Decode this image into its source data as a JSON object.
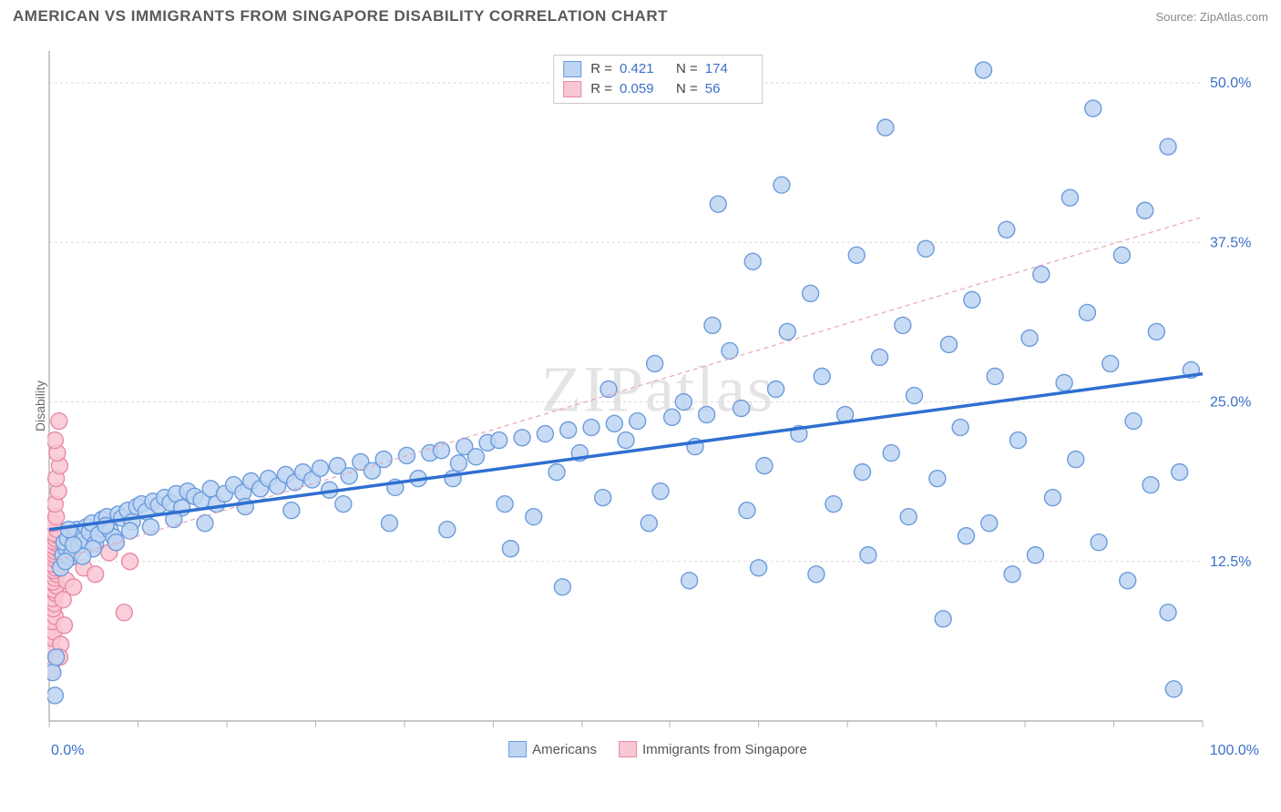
{
  "header": {
    "title": "AMERICAN VS IMMIGRANTS FROM SINGAPORE DISABILITY CORRELATION CHART",
    "source_prefix": "Source: ",
    "source_name": "ZipAtlas.com"
  },
  "watermark": "ZIPatlas",
  "chart": {
    "type": "scatter",
    "y_axis_label": "Disability",
    "background_color": "#ffffff",
    "grid_color": "#d9d9d9",
    "axis_color": "#b5b5b5",
    "xlim": [
      0,
      100
    ],
    "ylim": [
      0,
      52.5
    ],
    "x_ticks_label": {
      "min": "0.0%",
      "max": "100.0%",
      "color": "#3b6fc9"
    },
    "y_ticks": [
      {
        "v": 12.5,
        "label": "12.5%"
      },
      {
        "v": 25.0,
        "label": "25.0%"
      },
      {
        "v": 37.5,
        "label": "37.5%"
      },
      {
        "v": 50.0,
        "label": "50.0%"
      }
    ],
    "y_tick_color": "#3b6fc9",
    "x_minor_ticks": [
      0,
      7.7,
      15.4,
      23.1,
      30.8,
      38.5,
      46.2,
      53.8,
      61.5,
      69.2,
      76.9,
      84.6,
      92.3,
      100
    ],
    "marker_radius": 9,
    "marker_stroke_width": 1.4,
    "series": [
      {
        "name": "Americans",
        "legend_label": "Americans",
        "fill": "#bdd5f2",
        "stroke": "#6c9bdc",
        "r_value": "0.421",
        "n_value": "174",
        "trend": {
          "x1": 0,
          "y1": 15.0,
          "x2": 100,
          "y2": 27.2,
          "stroke": "#2f6fd0",
          "width": 3.5,
          "dash": ""
        },
        "points": [
          [
            0.3,
            3.8
          ],
          [
            0.5,
            2.0
          ],
          [
            0.6,
            5.0
          ],
          [
            97.5,
            2.5
          ],
          [
            97.0,
            8.5
          ],
          [
            1.0,
            12.0
          ],
          [
            1.2,
            13.0
          ],
          [
            1.5,
            13.5
          ],
          [
            1.3,
            14.0
          ],
          [
            1.6,
            14.3
          ],
          [
            1.8,
            12.8
          ],
          [
            2.0,
            13.2
          ],
          [
            2.2,
            14.5
          ],
          [
            2.4,
            15.0
          ],
          [
            2.6,
            13.8
          ],
          [
            3.0,
            14.2
          ],
          [
            3.2,
            15.2
          ],
          [
            3.5,
            14.8
          ],
          [
            3.7,
            15.5
          ],
          [
            4.0,
            13.9
          ],
          [
            4.3,
            14.6
          ],
          [
            4.6,
            15.8
          ],
          [
            5.0,
            16.0
          ],
          [
            5.3,
            14.9
          ],
          [
            5.6,
            14.4
          ],
          [
            6.0,
            16.2
          ],
          [
            6.3,
            15.9
          ],
          [
            6.8,
            16.5
          ],
          [
            7.2,
            15.6
          ],
          [
            7.6,
            16.8
          ],
          [
            8.0,
            17.0
          ],
          [
            8.4,
            16.4
          ],
          [
            9.0,
            17.2
          ],
          [
            9.5,
            16.9
          ],
          [
            10.0,
            17.5
          ],
          [
            10.5,
            17.1
          ],
          [
            11.0,
            17.8
          ],
          [
            11.5,
            16.7
          ],
          [
            12.0,
            18.0
          ],
          [
            12.6,
            17.6
          ],
          [
            13.2,
            17.3
          ],
          [
            14.0,
            18.2
          ],
          [
            14.5,
            17.0
          ],
          [
            15.2,
            17.8
          ],
          [
            16.0,
            18.5
          ],
          [
            16.8,
            17.9
          ],
          [
            17.5,
            18.8
          ],
          [
            18.3,
            18.2
          ],
          [
            19.0,
            19.0
          ],
          [
            19.8,
            18.4
          ],
          [
            20.5,
            19.3
          ],
          [
            21.3,
            18.7
          ],
          [
            22.0,
            19.5
          ],
          [
            22.8,
            18.9
          ],
          [
            23.5,
            19.8
          ],
          [
            24.3,
            18.1
          ],
          [
            25.0,
            20.0
          ],
          [
            26.0,
            19.2
          ],
          [
            27.0,
            20.3
          ],
          [
            28.0,
            19.6
          ],
          [
            29.0,
            20.5
          ],
          [
            30.0,
            18.3
          ],
          [
            31.0,
            20.8
          ],
          [
            32.0,
            19.0
          ],
          [
            33.0,
            21.0
          ],
          [
            34.0,
            21.2
          ],
          [
            34.5,
            15.0
          ],
          [
            35.5,
            20.2
          ],
          [
            36.0,
            21.5
          ],
          [
            37.0,
            20.7
          ],
          [
            38.0,
            21.8
          ],
          [
            39.0,
            22.0
          ],
          [
            40.0,
            13.5
          ],
          [
            41.0,
            22.2
          ],
          [
            42.0,
            16.0
          ],
          [
            43.0,
            22.5
          ],
          [
            44.0,
            19.5
          ],
          [
            44.5,
            10.5
          ],
          [
            45.0,
            22.8
          ],
          [
            46.0,
            21.0
          ],
          [
            47.0,
            23.0
          ],
          [
            48.0,
            17.5
          ],
          [
            49.0,
            23.3
          ],
          [
            50.0,
            22.0
          ],
          [
            51.0,
            23.5
          ],
          [
            52.0,
            15.5
          ],
          [
            53.0,
            18.0
          ],
          [
            54.0,
            23.8
          ],
          [
            55.0,
            25.0
          ],
          [
            56.0,
            21.5
          ],
          [
            57.0,
            24.0
          ],
          [
            58.0,
            40.5
          ],
          [
            59.0,
            29.0
          ],
          [
            60.0,
            24.5
          ],
          [
            61.0,
            36.0
          ],
          [
            61.5,
            12.0
          ],
          [
            62.0,
            20.0
          ],
          [
            63.0,
            26.0
          ],
          [
            63.5,
            42.0
          ],
          [
            64.0,
            30.5
          ],
          [
            65.0,
            22.5
          ],
          [
            66.0,
            33.5
          ],
          [
            67.0,
            27.0
          ],
          [
            68.0,
            17.0
          ],
          [
            69.0,
            24.0
          ],
          [
            70.0,
            36.5
          ],
          [
            71.0,
            13.0
          ],
          [
            72.0,
            28.5
          ],
          [
            72.5,
            46.5
          ],
          [
            73.0,
            21.0
          ],
          [
            74.0,
            31.0
          ],
          [
            75.0,
            25.5
          ],
          [
            76.0,
            37.0
          ],
          [
            77.0,
            19.0
          ],
          [
            77.5,
            8.0
          ],
          [
            78.0,
            29.5
          ],
          [
            79.0,
            23.0
          ],
          [
            80.0,
            33.0
          ],
          [
            81.0,
            51.0
          ],
          [
            81.5,
            15.5
          ],
          [
            82.0,
            27.0
          ],
          [
            83.0,
            38.5
          ],
          [
            83.5,
            11.5
          ],
          [
            84.0,
            22.0
          ],
          [
            85.0,
            30.0
          ],
          [
            86.0,
            35.0
          ],
          [
            87.0,
            17.5
          ],
          [
            88.0,
            26.5
          ],
          [
            88.5,
            41.0
          ],
          [
            89.0,
            20.5
          ],
          [
            90.0,
            32.0
          ],
          [
            90.5,
            48.0
          ],
          [
            91.0,
            14.0
          ],
          [
            92.0,
            28.0
          ],
          [
            93.0,
            36.5
          ],
          [
            93.5,
            11.0
          ],
          [
            94.0,
            23.5
          ],
          [
            95.0,
            40.0
          ],
          [
            95.5,
            18.5
          ],
          [
            96.0,
            30.5
          ],
          [
            97.0,
            45.0
          ],
          [
            98.0,
            19.5
          ],
          [
            99.0,
            27.5
          ],
          [
            55.5,
            11.0
          ],
          [
            60.5,
            16.5
          ],
          [
            66.5,
            11.5
          ],
          [
            70.5,
            19.5
          ],
          [
            74.5,
            16.0
          ],
          [
            79.5,
            14.5
          ],
          [
            85.5,
            13.0
          ],
          [
            57.5,
            31.0
          ],
          [
            52.5,
            28.0
          ],
          [
            48.5,
            26.0
          ],
          [
            39.5,
            17.0
          ],
          [
            35.0,
            19.0
          ],
          [
            29.5,
            15.5
          ],
          [
            25.5,
            17.0
          ],
          [
            21.0,
            16.5
          ],
          [
            17.0,
            16.8
          ],
          [
            13.5,
            15.5
          ],
          [
            10.8,
            15.8
          ],
          [
            8.8,
            15.2
          ],
          [
            7.0,
            14.9
          ],
          [
            5.8,
            14.0
          ],
          [
            4.9,
            15.3
          ],
          [
            3.8,
            13.5
          ],
          [
            2.9,
            12.9
          ],
          [
            2.1,
            13.8
          ],
          [
            1.7,
            15.0
          ],
          [
            1.4,
            12.5
          ]
        ]
      },
      {
        "name": "Immigrants from Singapore",
        "legend_label": "Immigrants from Singapore",
        "fill": "#f9c7d4",
        "stroke": "#e88aa5",
        "r_value": "0.059",
        "n_value": "56",
        "trend": {
          "x1": 0,
          "y1": 12.4,
          "x2": 100,
          "y2": 39.5,
          "stroke": "#e9a6b8",
          "width": 1.2,
          "dash": "5,4"
        },
        "points": [
          [
            0.2,
            4.0
          ],
          [
            0.3,
            5.5
          ],
          [
            0.25,
            6.5
          ],
          [
            0.4,
            7.0
          ],
          [
            0.3,
            7.8
          ],
          [
            0.5,
            8.2
          ],
          [
            0.35,
            8.8
          ],
          [
            0.45,
            9.2
          ],
          [
            0.3,
            9.6
          ],
          [
            0.55,
            10.0
          ],
          [
            0.4,
            10.3
          ],
          [
            0.6,
            10.6
          ],
          [
            0.35,
            10.9
          ],
          [
            0.5,
            11.2
          ],
          [
            0.65,
            11.5
          ],
          [
            0.4,
            11.8
          ],
          [
            0.55,
            12.0
          ],
          [
            0.3,
            12.3
          ],
          [
            0.7,
            12.5
          ],
          [
            0.45,
            12.7
          ],
          [
            0.6,
            12.9
          ],
          [
            0.35,
            13.1
          ],
          [
            0.5,
            13.3
          ],
          [
            0.75,
            13.5
          ],
          [
            0.4,
            13.7
          ],
          [
            0.65,
            13.9
          ],
          [
            0.3,
            14.1
          ],
          [
            0.55,
            14.3
          ],
          [
            0.8,
            14.5
          ],
          [
            0.45,
            14.7
          ],
          [
            0.7,
            15.0
          ],
          [
            0.35,
            15.5
          ],
          [
            0.6,
            16.0
          ],
          [
            0.5,
            17.0
          ],
          [
            0.8,
            18.0
          ],
          [
            0.6,
            19.0
          ],
          [
            0.9,
            20.0
          ],
          [
            0.7,
            21.0
          ],
          [
            0.5,
            22.0
          ],
          [
            0.85,
            23.5
          ],
          [
            1.2,
            9.5
          ],
          [
            1.5,
            11.0
          ],
          [
            1.8,
            13.0
          ],
          [
            2.1,
            10.5
          ],
          [
            2.5,
            14.5
          ],
          [
            3.0,
            12.0
          ],
          [
            3.5,
            13.8
          ],
          [
            4.0,
            11.5
          ],
          [
            4.5,
            15.0
          ],
          [
            5.2,
            13.2
          ],
          [
            5.8,
            14.0
          ],
          [
            6.5,
            8.5
          ],
          [
            7.0,
            12.5
          ],
          [
            1.0,
            6.0
          ],
          [
            1.3,
            7.5
          ],
          [
            0.9,
            5.0
          ]
        ]
      }
    ],
    "legend_stat_labels": {
      "r": "R  =",
      "n": "N  ="
    },
    "bottom_legend_swatch_size": 18
  }
}
